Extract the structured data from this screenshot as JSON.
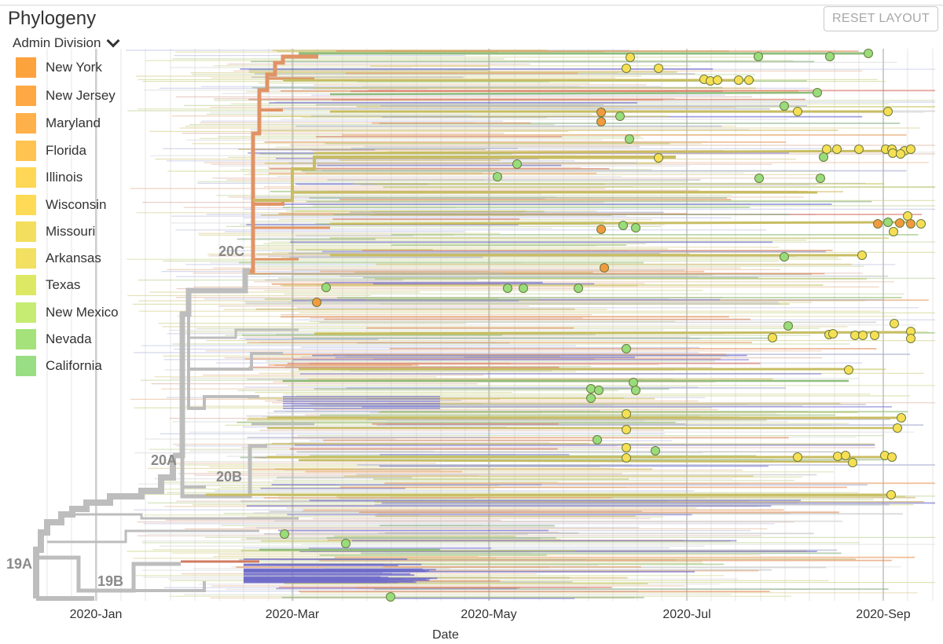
{
  "panel": {
    "title": "Phylogeny",
    "reset_label": "RESET LAYOUT",
    "color_by": "Admin Division"
  },
  "legend": [
    {
      "label": "New York",
      "color": "#f5a447"
    },
    {
      "label": "New Jersey",
      "color": "#f7a94f"
    },
    {
      "label": "Maryland",
      "color": "#f8b154"
    },
    {
      "label": "Florida",
      "color": "#fbc35c"
    },
    {
      "label": "Illinois",
      "color": "#fbd762"
    },
    {
      "label": "Wisconsin",
      "color": "#fbdb62"
    },
    {
      "label": "Missouri",
      "color": "#f2de68"
    },
    {
      "label": "Arkansas",
      "color": "#f0e06e"
    },
    {
      "label": "Texas",
      "color": "#dde870"
    },
    {
      "label": "New Mexico",
      "color": "#c8ea7c"
    },
    {
      "label": "Nevada",
      "color": "#a9e083"
    },
    {
      "label": "California",
      "color": "#9ddc8a"
    }
  ],
  "axis": {
    "title": "Date",
    "ticks": [
      "2020-Jan",
      "2020-Mar",
      "2020-May",
      "2020-Jul",
      "2020-Sep"
    ]
  },
  "clades": [
    "19A",
    "19B",
    "20A",
    "20B",
    "20C"
  ]
}
